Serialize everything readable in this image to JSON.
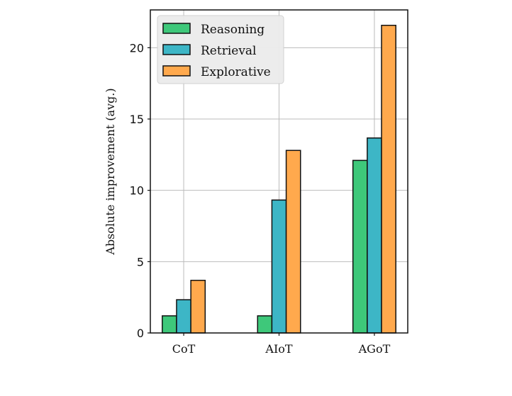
{
  "chart_data": {
    "type": "bar",
    "categories": [
      "CoT",
      "AIoT",
      "AGoT"
    ],
    "series": [
      {
        "name": "Reasoning",
        "values": [
          1.2,
          1.2,
          12.1
        ],
        "color": "#3ec87a"
      },
      {
        "name": "Retrieval",
        "values": [
          2.33,
          9.32,
          13.67
        ],
        "color": "#3db6c6"
      },
      {
        "name": "Explorative",
        "values": [
          3.69,
          12.8,
          21.57
        ],
        "color": "#ffa94d"
      }
    ],
    "title": "",
    "xlabel": "",
    "ylabel": "Absolute improvement (avg.)",
    "ylim": [
      0,
      22.65
    ],
    "yticks": [
      0,
      5,
      10,
      15,
      20
    ],
    "grid": true,
    "legend_position": "top-left"
  }
}
